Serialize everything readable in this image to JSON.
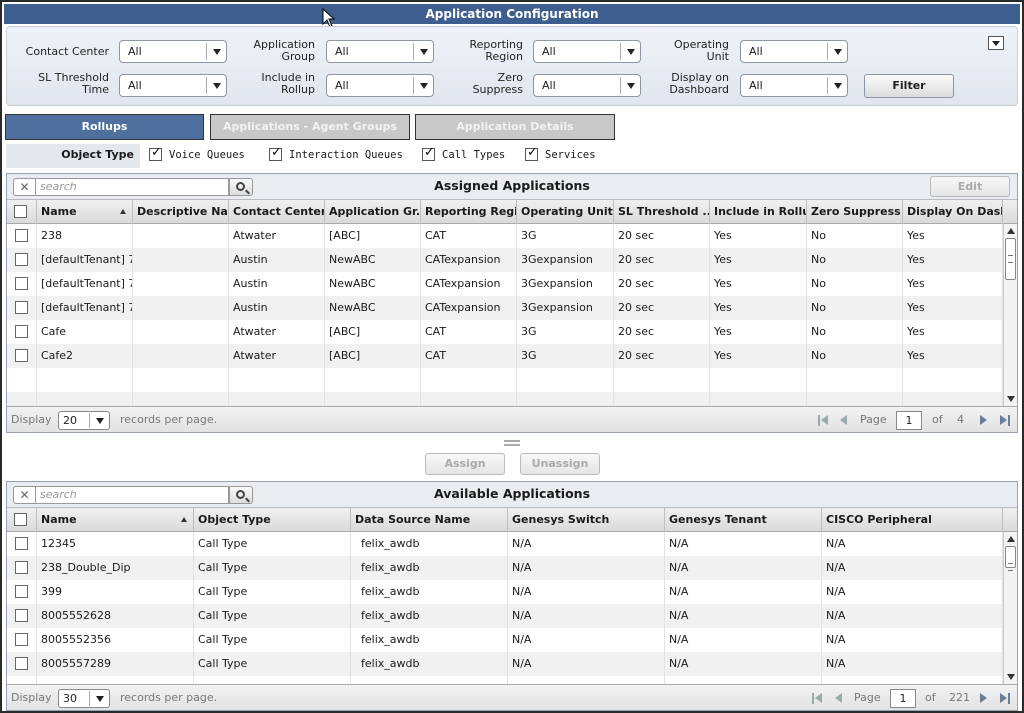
{
  "window": {
    "title": "Application Configuration"
  },
  "filters": {
    "contact_center": {
      "label": "Contact Center",
      "value": "All"
    },
    "application_group": {
      "label": "Application Group",
      "value": "All"
    },
    "reporting_region": {
      "label": "Reporting Region",
      "value": "All"
    },
    "operating_unit": {
      "label": "Operating Unit",
      "value": "All"
    },
    "sl_threshold_time": {
      "label": "SL Threshold Time",
      "value": "All"
    },
    "include_in_rollup": {
      "label": "Include in Rollup",
      "value": "All"
    },
    "zero_suppress": {
      "label": "Zero Suppress",
      "value": "All"
    },
    "display_on_dashboard": {
      "label": "Display on Dashboard",
      "value": "All"
    },
    "filter_button": "Filter"
  },
  "tabs": [
    {
      "label": "Rollups",
      "active": true
    },
    {
      "label": "Applications - Agent Groups",
      "active": false
    },
    {
      "label": "Application Details",
      "active": false
    }
  ],
  "object_type": {
    "label": "Object Type",
    "items": [
      {
        "label": "Voice Queues",
        "checked": true
      },
      {
        "label": "Interaction Queues",
        "checked": true
      },
      {
        "label": "Call Types",
        "checked": true
      },
      {
        "label": "Services",
        "checked": true
      }
    ]
  },
  "assigned": {
    "title": "Assigned Applications",
    "search_placeholder": "search",
    "edit_button": "Edit",
    "columns": [
      "Name",
      "Descriptive Na...",
      "Contact Center",
      "Application Gr...",
      "Reporting Regi...",
      "Operating Unit",
      "SL Threshold ...",
      "Include in Rollup",
      "Zero Suppress",
      "Display On Dash..."
    ],
    "rows": [
      [
        "238",
        "",
        "Atwater",
        "[ABC]",
        "CAT",
        "3G",
        "20 sec",
        "Yes",
        "No",
        "Yes"
      ],
      [
        "[defaultTenant] 7...",
        "",
        "Austin",
        "NewABC",
        "CATexpansion",
        "3Gexpansion",
        "20 sec",
        "Yes",
        "No",
        "Yes"
      ],
      [
        "[defaultTenant] 7...",
        "",
        "Austin",
        "NewABC",
        "CATexpansion",
        "3Gexpansion",
        "20 sec",
        "Yes",
        "No",
        "Yes"
      ],
      [
        "[defaultTenant] 7...",
        "",
        "Austin",
        "NewABC",
        "CATexpansion",
        "3Gexpansion",
        "20 sec",
        "Yes",
        "No",
        "Yes"
      ],
      [
        "Cafe",
        "",
        "Atwater",
        "[ABC]",
        "CAT",
        "3G",
        "20 sec",
        "Yes",
        "No",
        "Yes"
      ],
      [
        "Cafe2",
        "",
        "Atwater",
        "[ABC]",
        "CAT",
        "3G",
        "20 sec",
        "Yes",
        "No",
        "Yes"
      ]
    ],
    "footer": {
      "display": "Display",
      "per_page_value": "20",
      "records_text": "records per page.",
      "page_label": "Page",
      "page_value": "1",
      "of_label": "of",
      "total_pages": "4"
    }
  },
  "actions": {
    "assign": "Assign",
    "unassign": "Unassign"
  },
  "available": {
    "title": "Available Applications",
    "search_placeholder": "search",
    "columns": [
      "Name",
      "Object Type",
      "Data Source Name",
      "Genesys Switch",
      "Genesys Tenant",
      "CISCO Peripheral"
    ],
    "rows": [
      [
        "12345",
        "Call Type",
        "felix_awdb",
        "N/A",
        "N/A",
        "N/A"
      ],
      [
        "238_Double_Dip",
        "Call Type",
        "felix_awdb",
        "N/A",
        "N/A",
        "N/A"
      ],
      [
        "399",
        "Call Type",
        "felix_awdb",
        "N/A",
        "N/A",
        "N/A"
      ],
      [
        "8005552628",
        "Call Type",
        "felix_awdb",
        "N/A",
        "N/A",
        "N/A"
      ],
      [
        "8005552356",
        "Call Type",
        "felix_awdb",
        "N/A",
        "N/A",
        "N/A"
      ],
      [
        "8005557289",
        "Call Type",
        "felix_awdb",
        "N/A",
        "N/A",
        "N/A"
      ]
    ],
    "footer": {
      "display": "Display",
      "per_page_value": "30",
      "records_text": "records per page.",
      "page_label": "Page",
      "page_value": "1",
      "of_label": "of",
      "total_pages": "221"
    }
  }
}
